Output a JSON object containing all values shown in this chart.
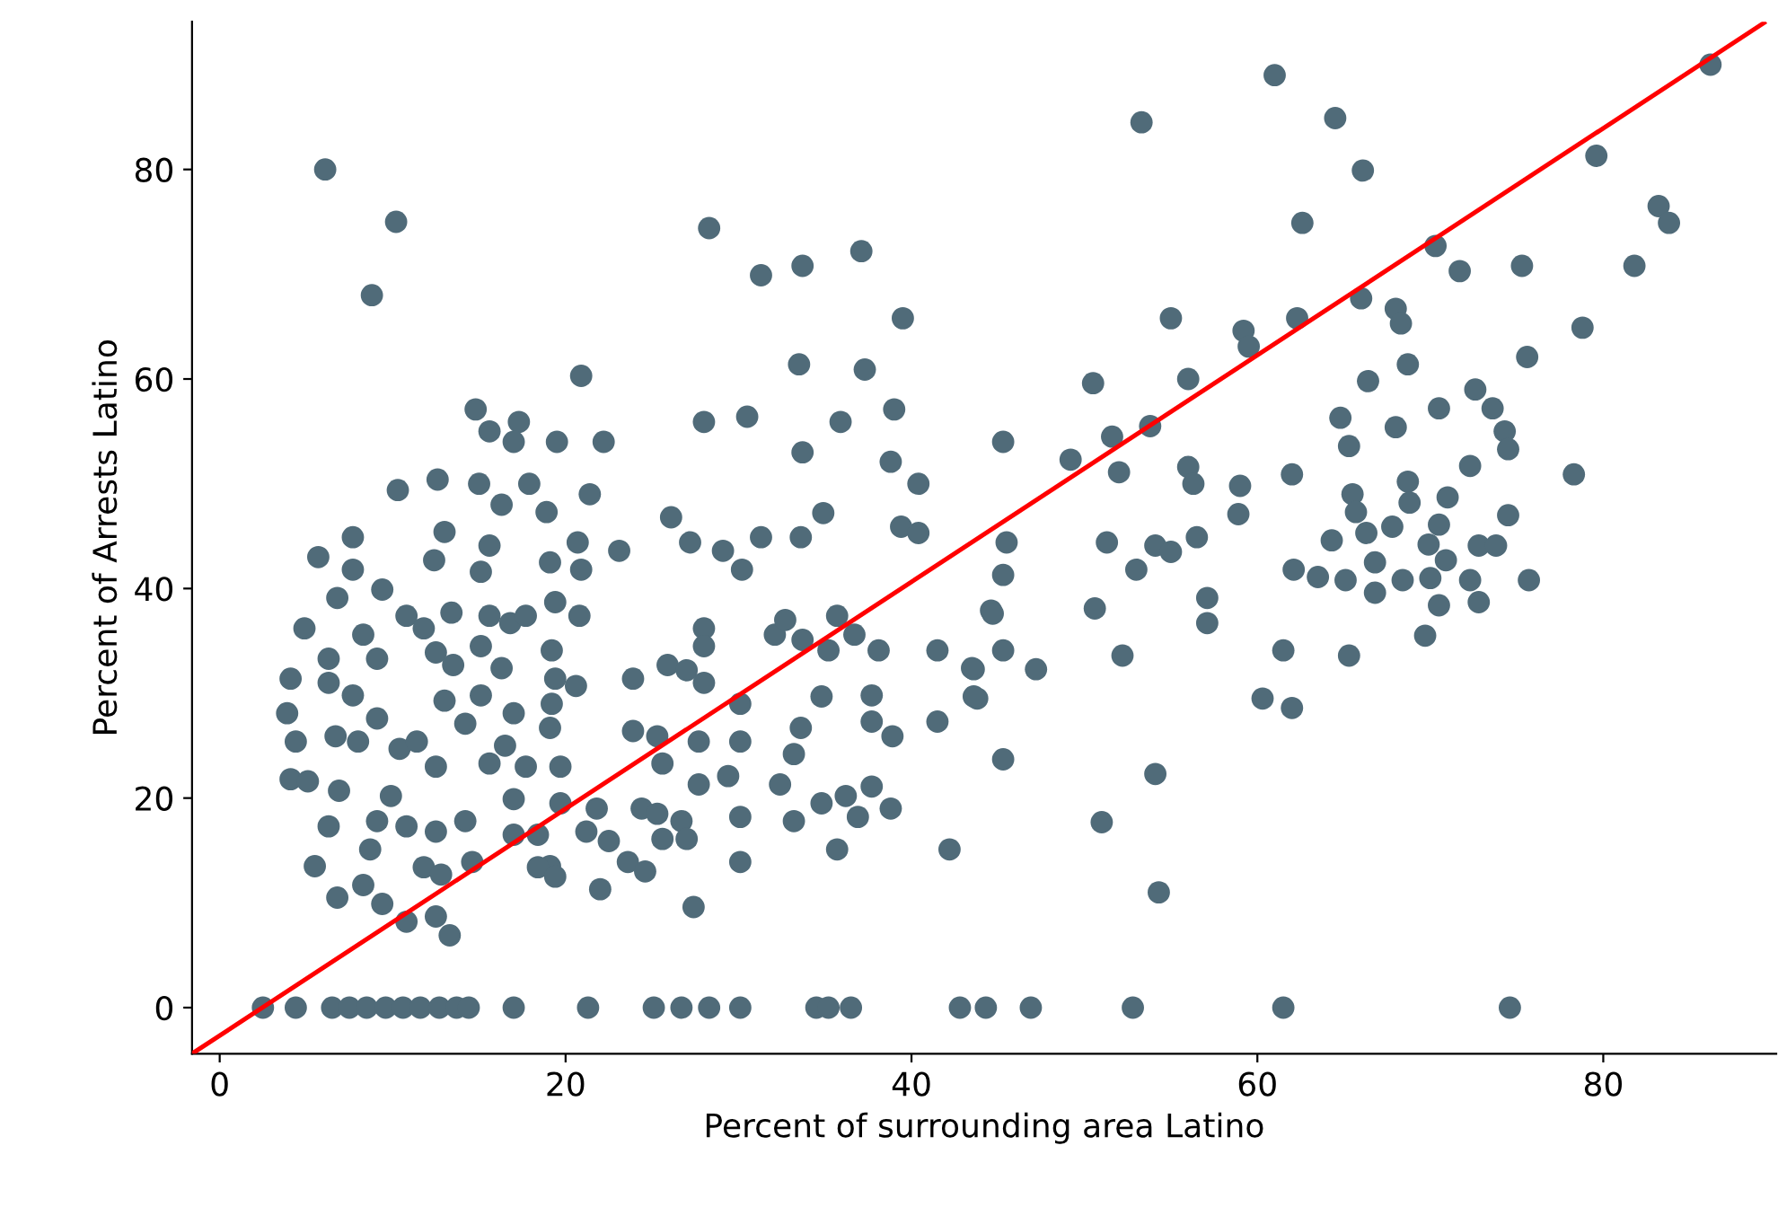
{
  "chart_data": {
    "type": "scatter",
    "xlabel": "Percent of surrounding area Latino",
    "ylabel": "Percent of Arrests Latino",
    "xlim": [
      -1.6,
      90
    ],
    "ylim": [
      -4.4,
      94.1
    ],
    "xticks": [
      0,
      20,
      40,
      60,
      80
    ],
    "yticks": [
      0,
      20,
      40,
      60,
      80
    ],
    "grid": false,
    "legend": false,
    "marker": "circle",
    "series": [
      {
        "color": "#506b79",
        "x": [
          2.5,
          4.4,
          6.5,
          7.5,
          8.5,
          9.6,
          10.6,
          11.6,
          12.7,
          13.7,
          14.4,
          17,
          21.3,
          25.1,
          26.7,
          28.3,
          30.1,
          34.5,
          35.2,
          36.5,
          42.8,
          44.3,
          46.9,
          52.8,
          61.5,
          74.6,
          6.1,
          10.2,
          8.8,
          53.3,
          61,
          64.5,
          66.1,
          62.6,
          86.2,
          79.6,
          83.2,
          83.8,
          70.3,
          71.7,
          75.3,
          81.8,
          66,
          68,
          68.3,
          78.8,
          55,
          59.2,
          59.5,
          62.3,
          75.6,
          68.7,
          66.4,
          50.5,
          56,
          45.3,
          49.2,
          51.6,
          52,
          53.8,
          56,
          56.3,
          59,
          58.9,
          62,
          64.8,
          65.3,
          68,
          70.5,
          72.6,
          73.6,
          74.3,
          74.5,
          72.3,
          78.3,
          65.5,
          65.7,
          68.7,
          68.8,
          71,
          70.5,
          74.5,
          67.8,
          64.3,
          66.3,
          66.8,
          69.9,
          70.9,
          72.8,
          73.8,
          62.1,
          63.5,
          65.1,
          68.4,
          70,
          72.3,
          75.7,
          66.8,
          70.5,
          72.8,
          45.5,
          45.3,
          51.3,
          53,
          54.1,
          55,
          56.5,
          57.1,
          44.6,
          50.6,
          57.1,
          69.7,
          44.7,
          45.3,
          43.6,
          47.2,
          52.2,
          61.5,
          65.3,
          43.8,
          60.3,
          62,
          45.3,
          54.1,
          51,
          54.3,
          14.8,
          15.6,
          17.3,
          17,
          19.5,
          22.2,
          20.9,
          28,
          30.5,
          33.5,
          37.3,
          39.5,
          33.7,
          31.3,
          37.1,
          28.3,
          35.9,
          39,
          33.7,
          38.8,
          40.4,
          34.9,
          33.6,
          31.3,
          29.1,
          27.2,
          26.1,
          30.2,
          39.4,
          40.4,
          10.3,
          12.6,
          15,
          17.9,
          16.3,
          18.9,
          21.4,
          13,
          15.6,
          15.1,
          20.7,
          23.1,
          7.7,
          19.1,
          20.9,
          12.4,
          5.7,
          7.7,
          9.4,
          4.9,
          6.8,
          4.1,
          3.9,
          4.4,
          4.1,
          5.1,
          6.3,
          7.7,
          6.7,
          8,
          9.1,
          6.9,
          6.3,
          5.5,
          6.8,
          9.1,
          8.7,
          9.9,
          10.8,
          8.3,
          9.4,
          10.8,
          12.5,
          13.3,
          11.8,
          12.8,
          12.5,
          14.2,
          14.6,
          10.4,
          9.1,
          10.8,
          11.8,
          12.5,
          13.4,
          13,
          12.5,
          11.4,
          6.3,
          8.3,
          13.5,
          14.2,
          15.6,
          16.8,
          17.7,
          15.1,
          16.3,
          15.1,
          17,
          15.6,
          16.5,
          17.7,
          19.2,
          19.4,
          20.6,
          19.2,
          19.1,
          19.7,
          19.4,
          20.8,
          17,
          17,
          18.4,
          19.7,
          19.1,
          18.4,
          19.4,
          21.2,
          21.8,
          22.5,
          22,
          23.6,
          24.6,
          23.9,
          23.9,
          25.3,
          24.4,
          25.6,
          25.9,
          27,
          28,
          25.3,
          26.7,
          25.6,
          27,
          27.4,
          27.7,
          28,
          28,
          27.7,
          29.4,
          30.1,
          30.1,
          30.1,
          30.1,
          32.1,
          32.7,
          33.6,
          33.2,
          32.4,
          33.2,
          34.8,
          34.8,
          35.7,
          35.2,
          33.7,
          35.7,
          36.7,
          36.2,
          36.9,
          37.7,
          38.8,
          38.1,
          37.7,
          37.7,
          38.9,
          41.5,
          41.5,
          42.2,
          43.5,
          43.6
        ],
        "values": [
          0,
          0,
          0,
          0,
          0,
          0,
          0,
          0,
          0,
          0,
          0,
          0,
          0,
          0,
          0,
          0,
          0,
          0,
          0,
          0,
          0,
          0,
          0,
          0,
          0,
          0,
          80,
          75,
          68,
          84.5,
          89,
          84.9,
          79.9,
          74.9,
          90,
          81.3,
          76.5,
          74.9,
          72.7,
          70.3,
          70.8,
          70.8,
          67.7,
          66.7,
          65.3,
          64.9,
          65.8,
          64.6,
          63.1,
          65.8,
          62.1,
          61.4,
          59.8,
          59.6,
          60,
          54,
          52.3,
          54.5,
          51.1,
          55.5,
          51.6,
          50,
          49.8,
          47.1,
          50.9,
          56.3,
          53.6,
          55.4,
          57.2,
          59,
          57.2,
          55,
          53.3,
          51.7,
          50.9,
          49,
          47.3,
          50.2,
          48.2,
          48.7,
          46.1,
          47,
          45.9,
          44.6,
          45.3,
          42.5,
          44.2,
          42.7,
          44.1,
          44.1,
          41.8,
          41.1,
          40.8,
          40.8,
          41,
          40.8,
          40.8,
          39.6,
          38.4,
          38.7,
          44.4,
          41.3,
          44.4,
          41.8,
          44.1,
          43.5,
          44.9,
          39.1,
          37.9,
          38.1,
          36.7,
          35.5,
          37.6,
          34.1,
          32.3,
          32.3,
          33.6,
          34.1,
          33.6,
          29.5,
          29.5,
          28.6,
          23.7,
          22.3,
          17.7,
          11,
          57.1,
          55,
          55.9,
          54,
          54,
          54,
          60.3,
          55.9,
          56.4,
          61.4,
          60.9,
          65.8,
          70.8,
          69.9,
          72.2,
          74.4,
          55.9,
          57.1,
          53,
          52.1,
          50,
          47.2,
          44.9,
          44.9,
          43.6,
          44.4,
          46.8,
          41.8,
          45.9,
          45.3,
          49.4,
          50.4,
          50,
          50,
          48,
          47.3,
          49,
          45.4,
          44.1,
          41.6,
          44.4,
          43.6,
          44.9,
          42.5,
          41.8,
          42.7,
          43,
          41.8,
          39.9,
          36.2,
          39.1,
          31.4,
          28.1,
          25.4,
          21.8,
          21.6,
          31,
          29.8,
          25.9,
          25.4,
          27.6,
          20.7,
          17.3,
          13.5,
          10.5,
          17.8,
          15.1,
          20.2,
          17.3,
          11.7,
          9.9,
          8.2,
          8.7,
          6.9,
          13.4,
          12.7,
          16.8,
          17.8,
          13.9,
          24.7,
          33.3,
          37.4,
          36.2,
          33.9,
          37.7,
          29.3,
          23,
          25.4,
          33.3,
          35.6,
          32.7,
          27.1,
          37.4,
          36.7,
          37.4,
          34.5,
          32.4,
          29.8,
          28.1,
          23.3,
          25,
          23,
          34.1,
          31.4,
          30.7,
          29,
          26.7,
          23,
          38.7,
          37.4,
          19.9,
          16.5,
          16.5,
          19.5,
          13.5,
          13.4,
          12.5,
          16.8,
          19,
          15.9,
          11.3,
          13.9,
          13,
          31.4,
          26.4,
          25.9,
          19,
          23.3,
          32.7,
          32.2,
          31,
          18.5,
          17.8,
          16.1,
          16.1,
          9.6,
          25.4,
          36.2,
          34.5,
          21.3,
          22.1,
          29,
          25.4,
          18.2,
          13.9,
          35.6,
          37,
          26.7,
          24.2,
          21.3,
          17.8,
          29.7,
          19.5,
          15.1,
          34.1,
          35.1,
          37.4,
          35.6,
          20.2,
          18.2,
          21.1,
          19,
          34.1,
          29.8,
          27.3,
          25.9,
          34.1,
          27.3,
          15.1,
          32.4,
          29.7
        ]
      },
      {
        "type": "line",
        "color": "#ff0000",
        "line_style": "solid",
        "marker": "none",
        "x": [
          -1.6,
          89.3
        ],
        "values": [
          -4.4,
          94
        ]
      }
    ]
  }
}
